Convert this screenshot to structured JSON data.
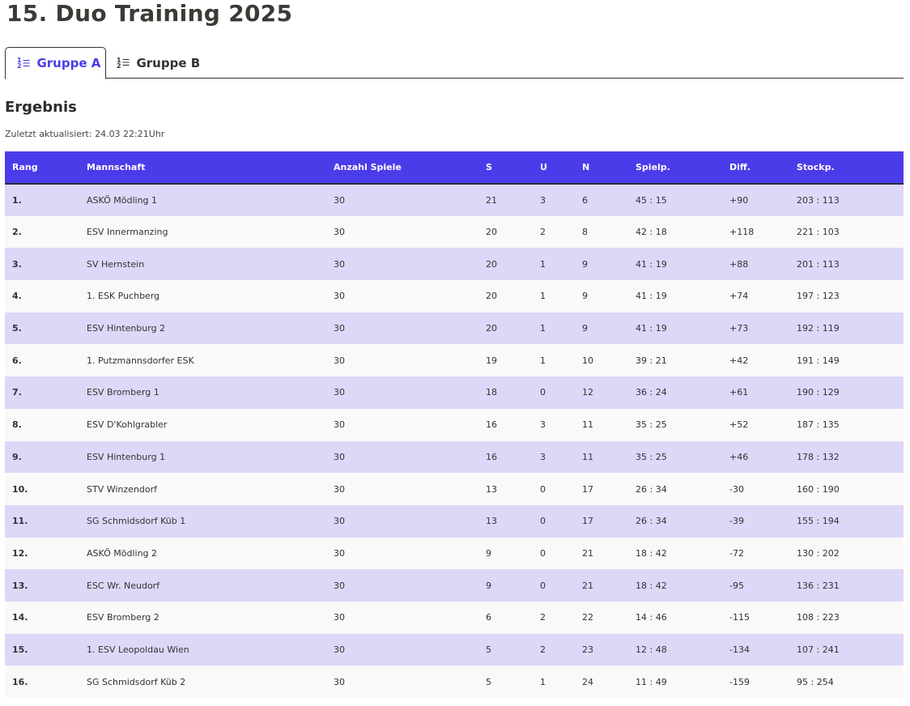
{
  "title": "15. Duo Training 2025",
  "tabs": [
    {
      "label": "Gruppe A",
      "icon": "ordered-list-icon",
      "active": true
    },
    {
      "label": "Gruppe B",
      "icon": "ordered-list-icon",
      "active": false
    }
  ],
  "section_title": "Ergebnis",
  "updated": "Zuletzt aktualisiert: 24.03 22:21Uhr",
  "colors": {
    "accent": "#4b3ce9",
    "row_odd": "#dcd8f8",
    "row_even": "#f9f9f9"
  },
  "table": {
    "headers": [
      "Rang",
      "Mannschaft",
      "Anzahl Spiele",
      "S",
      "U",
      "N",
      "Spielp.",
      "Diff.",
      "Stockp."
    ],
    "rows": [
      [
        "1.",
        "ASKÖ Mödling 1",
        "30",
        "21",
        "3",
        "6",
        "45 : 15",
        "+90",
        "203 : 113"
      ],
      [
        "2.",
        "ESV Innermanzing",
        "30",
        "20",
        "2",
        "8",
        "42 : 18",
        "+118",
        "221 : 103"
      ],
      [
        "3.",
        "SV Hernstein",
        "30",
        "20",
        "1",
        "9",
        "41 : 19",
        "+88",
        "201 : 113"
      ],
      [
        "4.",
        "1. ESK Puchberg",
        "30",
        "20",
        "1",
        "9",
        "41 : 19",
        "+74",
        "197 : 123"
      ],
      [
        "5.",
        "ESV Hintenburg 2",
        "30",
        "20",
        "1",
        "9",
        "41 : 19",
        "+73",
        "192 : 119"
      ],
      [
        "6.",
        "1. Putzmannsdorfer ESK",
        "30",
        "19",
        "1",
        "10",
        "39 : 21",
        "+42",
        "191 : 149"
      ],
      [
        "7.",
        "ESV Bromberg 1",
        "30",
        "18",
        "0",
        "12",
        "36 : 24",
        "+61",
        "190 : 129"
      ],
      [
        "8.",
        "ESV D'Kohlgrabler",
        "30",
        "16",
        "3",
        "11",
        "35 : 25",
        "+52",
        "187 : 135"
      ],
      [
        "9.",
        "ESV Hintenburg 1",
        "30",
        "16",
        "3",
        "11",
        "35 : 25",
        "+46",
        "178 : 132"
      ],
      [
        "10.",
        "STV Winzendorf",
        "30",
        "13",
        "0",
        "17",
        "26 : 34",
        "-30",
        "160 : 190"
      ],
      [
        "11.",
        "SG Schmidsdorf Küb 1",
        "30",
        "13",
        "0",
        "17",
        "26 : 34",
        "-39",
        "155 : 194"
      ],
      [
        "12.",
        "ASKÖ Mödling 2",
        "30",
        "9",
        "0",
        "21",
        "18 : 42",
        "-72",
        "130 : 202"
      ],
      [
        "13.",
        "ESC Wr. Neudorf",
        "30",
        "9",
        "0",
        "21",
        "18 : 42",
        "-95",
        "136 : 231"
      ],
      [
        "14.",
        "ESV Bromberg 2",
        "30",
        "6",
        "2",
        "22",
        "14 : 46",
        "-115",
        "108 : 223"
      ],
      [
        "15.",
        "1. ESV Leopoldau Wien",
        "30",
        "5",
        "2",
        "23",
        "12 : 48",
        "-134",
        "107 : 241"
      ],
      [
        "16.",
        "SG Schmidsdorf Küb 2",
        "30",
        "5",
        "1",
        "24",
        "11 : 49",
        "-159",
        "95 : 254"
      ]
    ]
  }
}
